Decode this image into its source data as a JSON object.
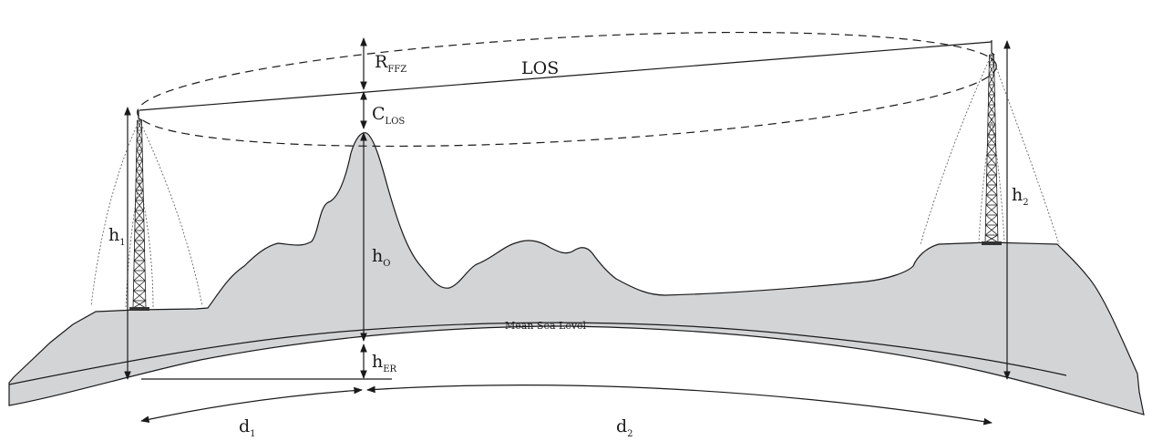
{
  "labels": {
    "r_ffz": {
      "main": "R",
      "sub": "FFZ"
    },
    "los": "LOS",
    "c_los": {
      "main": "C",
      "sub": "LOS"
    },
    "h1": {
      "main": "h",
      "sub": "1"
    },
    "h2": {
      "main": "h",
      "sub": "2"
    },
    "h_o": {
      "main": "h",
      "sub": "O"
    },
    "h_er": {
      "main": "h",
      "sub": "ER"
    },
    "d1": {
      "main": "d",
      "sub": "1"
    },
    "d2": {
      "main": "d",
      "sub": "2"
    },
    "mean_sea_level": "Mean Sea Level"
  }
}
